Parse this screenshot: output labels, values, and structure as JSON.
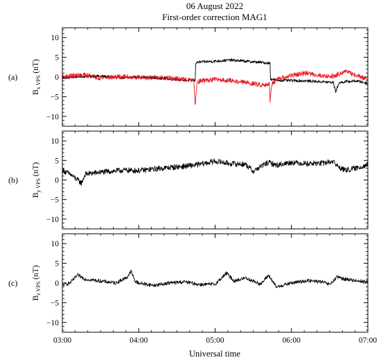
{
  "figure": {
    "title_line1": "06 August 2022",
    "title_line2": "First-order correction MAG1",
    "xlabel": "Universal time"
  },
  "colors": {
    "black_trace": "#000000",
    "red_trace": "#e8161b",
    "axes": "#000000"
  },
  "chart_data": [
    {
      "type": "line",
      "panel_label": "(a)",
      "ylabel_main": "B",
      "ylabel_sub": "x VPS",
      "ylabel_unit": " (nT)",
      "x_tick_labels": [
        "03:00",
        "04:00",
        "05:00",
        "06:00",
        "07:00"
      ],
      "xlim_hours": [
        3.0,
        7.0
      ],
      "y_ticks": [
        10,
        5,
        0,
        -5,
        -10
      ],
      "ylim": [
        -12.5,
        12.5
      ],
      "grid": false,
      "series": [
        {
          "color": "#000000",
          "noise": 0.35,
          "x": [
            3.0,
            3.2,
            3.5,
            3.8,
            4.0,
            4.3,
            4.6,
            4.74,
            4.745,
            4.8,
            5.0,
            5.2,
            5.4,
            5.6,
            5.72,
            5.725,
            5.8,
            6.0,
            6.2,
            6.4,
            6.55,
            6.58,
            6.62,
            6.7,
            6.85,
            7.0
          ],
          "y": [
            -0.3,
            0.1,
            0.2,
            -0.2,
            0.0,
            -0.3,
            -0.8,
            -0.9,
            3.6,
            3.8,
            4.0,
            4.3,
            4.0,
            3.7,
            3.5,
            -0.5,
            -0.8,
            -0.9,
            -1.0,
            -1.2,
            -1.4,
            -3.8,
            -1.5,
            -1.2,
            -1.0,
            -1.6
          ]
        },
        {
          "color": "#e8161b",
          "noise": 0.6,
          "x": [
            3.0,
            3.1,
            3.3,
            3.5,
            3.8,
            4.0,
            4.3,
            4.6,
            4.72,
            4.74,
            4.76,
            4.8,
            5.0,
            5.2,
            5.4,
            5.6,
            5.71,
            5.72,
            5.74,
            5.8,
            6.0,
            6.2,
            6.4,
            6.55,
            6.7,
            6.85,
            7.0
          ],
          "y": [
            0.0,
            0.3,
            0.5,
            -0.2,
            0.1,
            -0.1,
            -0.2,
            -0.6,
            -0.9,
            -7.2,
            -1.8,
            -1.0,
            -0.6,
            -0.9,
            -1.4,
            -2.0,
            -1.8,
            -6.3,
            -1.8,
            -0.8,
            0.4,
            1.0,
            0.3,
            0.2,
            1.5,
            0.4,
            -0.6
          ]
        }
      ]
    },
    {
      "type": "line",
      "panel_label": "(b)",
      "ylabel_main": "B",
      "ylabel_sub": "y VPS",
      "ylabel_unit": " (nT)",
      "x_tick_labels": [
        "03:00",
        "04:00",
        "05:00",
        "06:00",
        "07:00"
      ],
      "xlim_hours": [
        3.0,
        7.0
      ],
      "y_ticks": [
        10,
        5,
        0,
        -5,
        -10
      ],
      "ylim": [
        -12.5,
        12.5
      ],
      "grid": false,
      "series": [
        {
          "color": "#000000",
          "noise": 0.7,
          "x": [
            3.0,
            3.1,
            3.2,
            3.25,
            3.3,
            3.5,
            3.8,
            4.0,
            4.3,
            4.6,
            4.8,
            5.0,
            5.2,
            5.4,
            5.5,
            5.6,
            5.7,
            5.8,
            6.0,
            6.2,
            6.4,
            6.55,
            6.6,
            6.7,
            6.85,
            7.0
          ],
          "y": [
            2.5,
            1.5,
            0.0,
            -0.8,
            1.5,
            2.0,
            2.5,
            2.4,
            3.0,
            3.5,
            4.0,
            4.8,
            4.2,
            4.0,
            2.2,
            3.5,
            4.5,
            3.8,
            4.5,
            4.2,
            4.3,
            4.8,
            3.5,
            2.5,
            3.0,
            4.0
          ]
        }
      ]
    },
    {
      "type": "line",
      "panel_label": "(c)",
      "ylabel_main": "B",
      "ylabel_sub": "z VPS",
      "ylabel_unit": " (nT)",
      "x_tick_labels": [
        "03:00",
        "04:00",
        "05:00",
        "06:00",
        "07:00"
      ],
      "xlim_hours": [
        3.0,
        7.0
      ],
      "y_ticks": [
        10,
        5,
        0,
        -5,
        -10
      ],
      "ylim": [
        -12.5,
        12.5
      ],
      "grid": false,
      "series": [
        {
          "color": "#000000",
          "noise": 0.45,
          "x": [
            3.0,
            3.1,
            3.2,
            3.3,
            3.5,
            3.7,
            3.85,
            3.9,
            3.95,
            4.0,
            4.2,
            4.4,
            4.6,
            4.8,
            5.0,
            5.15,
            5.25,
            5.4,
            5.6,
            5.7,
            5.8,
            6.0,
            6.2,
            6.4,
            6.5,
            6.6,
            6.7,
            6.85,
            7.0
          ],
          "y": [
            -0.5,
            0.0,
            2.0,
            1.0,
            0.5,
            0.0,
            1.5,
            3.0,
            0.5,
            0.0,
            -0.6,
            0.0,
            0.3,
            -0.4,
            -0.3,
            2.5,
            0.5,
            1.3,
            -0.3,
            2.0,
            -1.0,
            0.0,
            0.6,
            0.3,
            -0.4,
            1.5,
            1.0,
            0.6,
            0.3
          ]
        }
      ]
    }
  ]
}
